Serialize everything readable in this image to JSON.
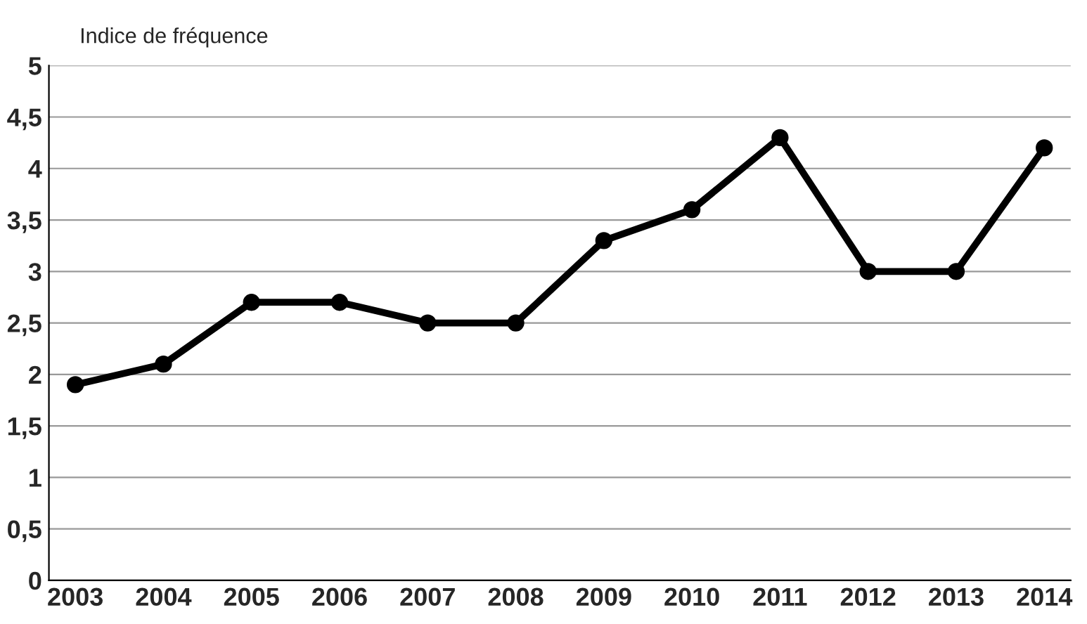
{
  "chart_data": {
    "type": "line",
    "ylabel": "Indice de fréquence",
    "categories": [
      "2003",
      "2004",
      "2005",
      "2006",
      "2007",
      "2008",
      "2009",
      "2010",
      "2011",
      "2012",
      "2013",
      "2014"
    ],
    "series": [
      {
        "color": "#000000",
        "values": [
          1.9,
          2.1,
          2.7,
          2.7,
          2.5,
          2.5,
          3.3,
          3.6,
          4.3,
          3.0,
          3.0,
          4.2
        ]
      }
    ],
    "ylim": [
      0,
      5
    ],
    "yticks": [
      0,
      {
        "value": 0.5,
        "label": "0,5"
      },
      1,
      {
        "value": 1.5,
        "label": "1,5"
      },
      2,
      {
        "value": 2.5,
        "label": "2,5"
      },
      3,
      {
        "value": 3.5,
        "label": "3,5"
      },
      4,
      {
        "value": 4.5,
        "label": "4,5"
      },
      5
    ],
    "grid": "y",
    "legend": false,
    "marker": "circle",
    "line_style": "solid"
  }
}
